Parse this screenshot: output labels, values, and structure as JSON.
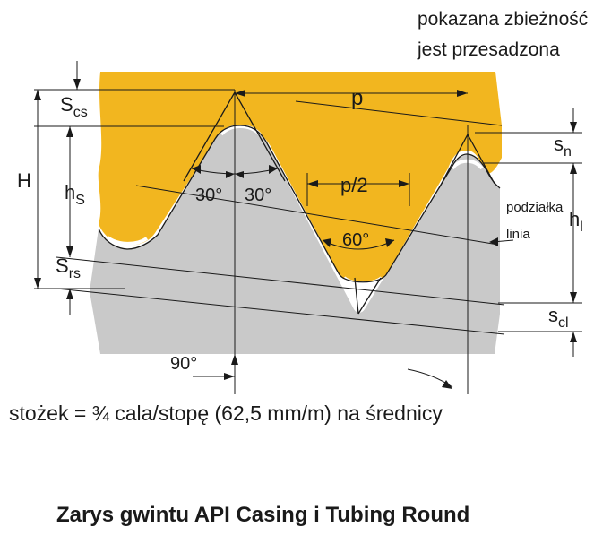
{
  "note": {
    "line1": "pokazana zbieżność",
    "line2": "jest przesadzona"
  },
  "labels": {
    "p": "p",
    "p_half": "p/2",
    "angle_30_left": "30°",
    "angle_30_right": "30°",
    "angle_60": "60°",
    "angle_90": "90°",
    "H": "H",
    "S": "S",
    "h": "h",
    "sub_cs": "cs",
    "sub_rs": "rs",
    "sub_S": "S",
    "s_n": "s",
    "sub_n": "n",
    "s_cl": "s",
    "sub_cl": "cl",
    "h_l": "h",
    "sub_l": "l",
    "pitch_line_1": "podziałka",
    "pitch_line_2": "linia"
  },
  "taper_text": "stożek = ¾ cala/stopę (62,5 mm/m) na średnicy",
  "caption": "Zarys gwintu API Casing i Tubing Round",
  "colors": {
    "coupling": "#f2b61f",
    "pipe": "#c9c9c9",
    "line": "#1a1a1a"
  }
}
